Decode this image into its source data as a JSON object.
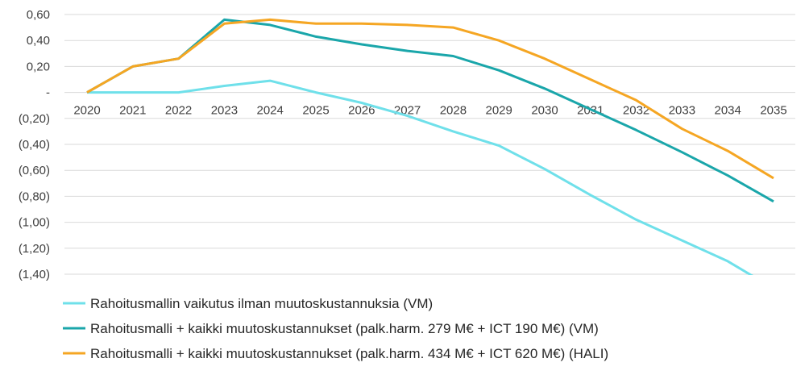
{
  "chart_data": {
    "type": "line",
    "title": "",
    "xlabel": "",
    "ylabel": "",
    "categories": [
      "2020",
      "2021",
      "2022",
      "2023",
      "2024",
      "2025",
      "2026",
      "2027",
      "2028",
      "2029",
      "2030",
      "2031",
      "2032",
      "2033",
      "2034",
      "2035"
    ],
    "ylim": [
      -1.4,
      0.6
    ],
    "yticks": [
      0.6,
      0.4,
      0.2,
      0,
      -0.2,
      -0.4,
      -0.6,
      -0.8,
      -1.0,
      -1.2,
      -1.4
    ],
    "ytick_labels": [
      "0,60",
      "0,40",
      "0,20",
      "-",
      "(0,20)",
      "(0,40)",
      "(0,60)",
      "(0,80)",
      "(1,00)",
      "(1,20)",
      "(1,40)"
    ],
    "grid": true,
    "legend_position": "bottom",
    "series": [
      {
        "name": "Rahoitusmallin vaikutus ilman muutoskustannuksia (VM)",
        "color": "#6fe0ea",
        "values": [
          0,
          0,
          0,
          0.05,
          0.09,
          0.0,
          -0.08,
          -0.18,
          -0.3,
          -0.41,
          -0.59,
          -0.79,
          -0.98,
          -1.14,
          -1.3,
          -1.51
        ]
      },
      {
        "name": "Rahoitusmalli + kaikki muutoskustannukset (palk.harm. 279 M€ + ICT 190 M€) (VM)",
        "color": "#1aa6aa",
        "values": [
          0,
          0.2,
          0.26,
          0.56,
          0.52,
          0.43,
          0.37,
          0.32,
          0.28,
          0.17,
          0.03,
          -0.13,
          -0.29,
          -0.46,
          -0.64,
          -0.84
        ]
      },
      {
        "name": "Rahoitusmalli + kaikki muutoskustannukset (palk.harm. 434 M€ + ICT 620 M€) (HALI)",
        "color": "#f5a623",
        "values": [
          0,
          0.2,
          0.26,
          0.53,
          0.56,
          0.53,
          0.53,
          0.52,
          0.5,
          0.4,
          0.26,
          0.1,
          -0.06,
          -0.28,
          -0.45,
          -0.66
        ]
      }
    ]
  }
}
